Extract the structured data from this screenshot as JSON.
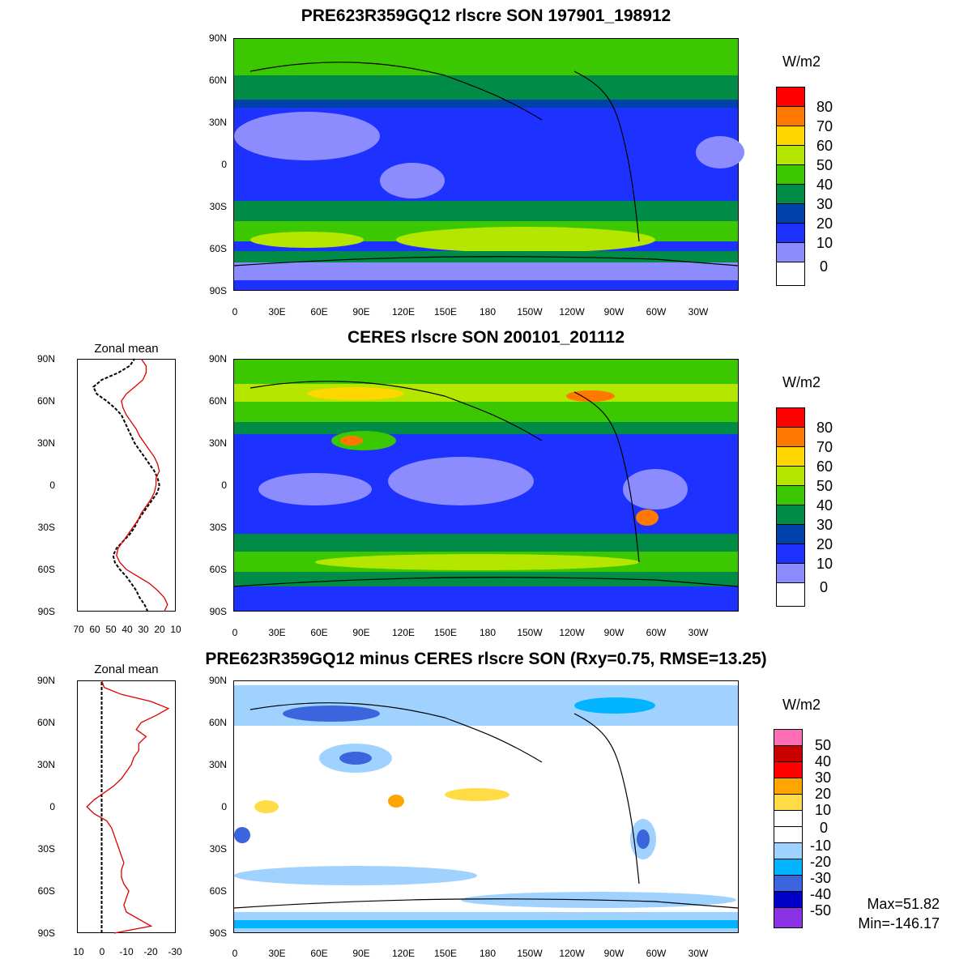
{
  "panels": [
    {
      "title": "PRE623R359GQ12 rlscre SON 197901_198912",
      "unit": "W/m2",
      "legend_labels": [
        "80",
        "70",
        "60",
        "50",
        "40",
        "30",
        "20",
        "10",
        "0"
      ],
      "legend_colors": [
        "#ff0000",
        "#ff7800",
        "#ffd700",
        "#b4e600",
        "#3cc800",
        "#008c46",
        "#0041aa",
        "#1e32ff",
        "#8c8cff",
        "#ffffff"
      ]
    },
    {
      "title": "CERES rlscre SON 200101_201112",
      "unit": "W/m2",
      "legend_labels": [
        "80",
        "70",
        "60",
        "50",
        "40",
        "30",
        "20",
        "10",
        "0"
      ],
      "legend_colors": [
        "#ff0000",
        "#ff7800",
        "#ffd700",
        "#b4e600",
        "#3cc800",
        "#008c46",
        "#0041aa",
        "#1e32ff",
        "#8c8cff",
        "#ffffff"
      ]
    },
    {
      "title": "PRE623R359GQ12 minus CERES rlscre SON (Rxy=0.75, RMSE=13.25)",
      "unit": "W/m2",
      "legend_labels": [
        "50",
        "40",
        "30",
        "20",
        "10",
        "0",
        "-10",
        "-20",
        "-30",
        "-40",
        "-50"
      ],
      "legend_colors": [
        "#ff6eb4",
        "#c80000",
        "#ff0000",
        "#ffa500",
        "#ffdc46",
        "#ffffff",
        "#ffffff",
        "#a0d2ff",
        "#00b4ff",
        "#3c64dc",
        "#0000c8",
        "#8c32e6"
      ],
      "max_label": "Max=51.82",
      "min_label": "Min=-146.17"
    }
  ],
  "lat_ticks": [
    "90N",
    "60N",
    "30N",
    "0",
    "30S",
    "60S",
    "90S"
  ],
  "lon_ticks": [
    "0",
    "30E",
    "60E",
    "90E",
    "120E",
    "150E",
    "180",
    "150W",
    "120W",
    "90W",
    "60W",
    "30W"
  ],
  "zonal_title": "Zonal mean",
  "zonal_x_ticks_mean": [
    "70",
    "60",
    "50",
    "40",
    "30",
    "20",
    "10"
  ],
  "zonal_x_ticks_diff": [
    "10",
    "0",
    "-10",
    "-20",
    "-30"
  ],
  "chart_data": [
    {
      "type": "line",
      "title": "Zonal mean",
      "xlim": [
        70,
        10
      ],
      "ylim": [
        -90,
        90
      ],
      "series": [
        {
          "color": "#000000",
          "dash": true,
          "lat": [
            -90,
            -85,
            -80,
            -75,
            -70,
            -65,
            -60,
            -55,
            -50,
            -45,
            -40,
            -35,
            -30,
            -25,
            -20,
            -15,
            -10,
            -5,
            0,
            5,
            10,
            15,
            20,
            25,
            30,
            35,
            40,
            45,
            50,
            55,
            60,
            65,
            70,
            75,
            80,
            85,
            90
          ],
          "x": [
            27,
            29,
            32,
            34,
            37,
            40,
            44,
            47,
            48,
            46,
            42,
            38,
            35,
            33,
            30,
            27,
            24,
            21,
            20,
            21,
            23,
            26,
            29,
            32,
            35,
            37,
            39,
            41,
            43,
            47,
            52,
            58,
            60,
            55,
            45,
            38,
            35
          ]
        },
        {
          "color": "#dd0000",
          "dash": false,
          "lat": [
            -90,
            -85,
            -80,
            -75,
            -70,
            -65,
            -60,
            -55,
            -50,
            -45,
            -40,
            -35,
            -30,
            -25,
            -20,
            -15,
            -10,
            -5,
            0,
            5,
            10,
            15,
            20,
            25,
            30,
            35,
            40,
            45,
            50,
            55,
            60,
            65,
            70,
            75,
            80,
            85,
            90
          ],
          "x": [
            17,
            15,
            17,
            21,
            26,
            33,
            40,
            44,
            46,
            45,
            42,
            39,
            36,
            33,
            31,
            28,
            25,
            23,
            22,
            22,
            20,
            21,
            23,
            26,
            29,
            32,
            34,
            37,
            40,
            42,
            43,
            40,
            35,
            30,
            28,
            28,
            31
          ]
        }
      ]
    },
    {
      "type": "line",
      "title": "Zonal mean",
      "xlim": [
        10,
        -30
      ],
      "ylim": [
        -90,
        90
      ],
      "series": [
        {
          "color": "#000000",
          "dash": true,
          "lat": [
            -90,
            90
          ],
          "x": [
            0,
            0
          ]
        },
        {
          "color": "#dd0000",
          "dash": false,
          "lat": [
            -90,
            -85,
            -80,
            -75,
            -70,
            -65,
            -60,
            -55,
            -50,
            -45,
            -40,
            -35,
            -30,
            -25,
            -20,
            -15,
            -10,
            -5,
            0,
            5,
            10,
            15,
            20,
            25,
            30,
            35,
            40,
            45,
            50,
            55,
            60,
            65,
            70,
            75,
            80,
            85,
            90
          ],
          "x": [
            -5,
            -20,
            -15,
            -10,
            -9,
            -10,
            -11,
            -9,
            -8,
            -8,
            -9,
            -8,
            -7,
            -6,
            -5,
            -4,
            -2,
            3,
            6,
            3,
            -1,
            -5,
            -8,
            -10,
            -12,
            -13,
            -15,
            -15,
            -18,
            -14,
            -16,
            -22,
            -27,
            -20,
            -8,
            -1,
            0
          ]
        }
      ]
    }
  ]
}
